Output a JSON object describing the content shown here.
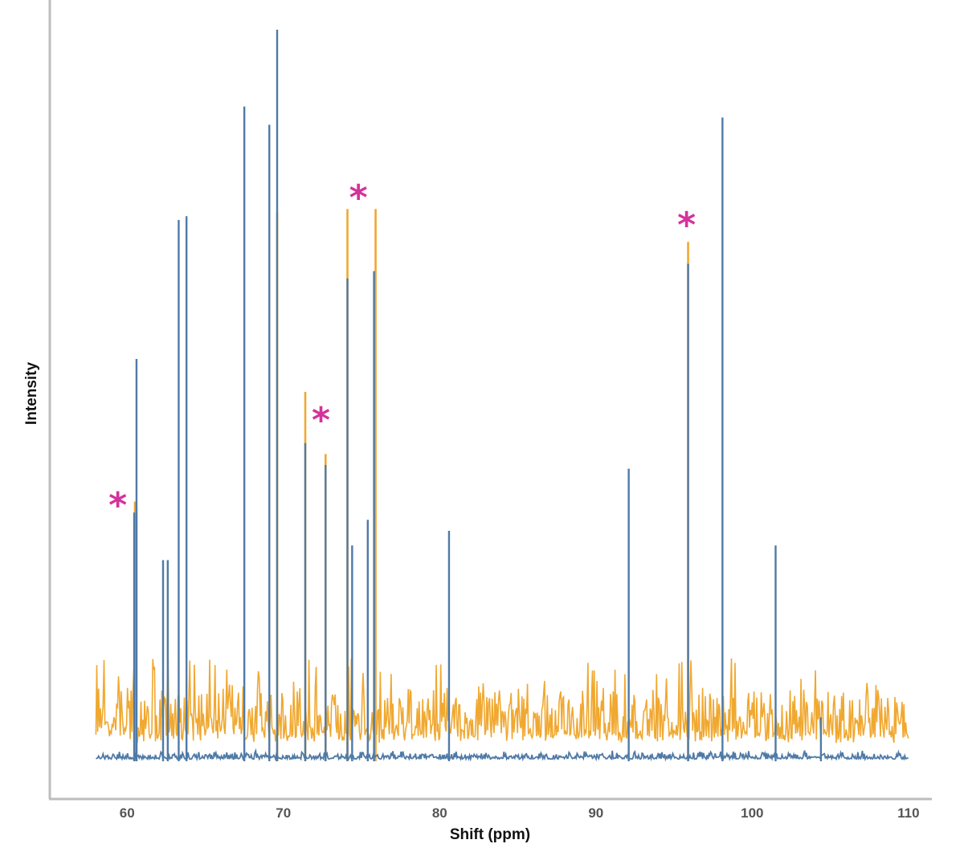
{
  "chart_data": {
    "type": "line",
    "xlabel": "Shift (ppm)",
    "ylabel": "Intensity",
    "xlim": [
      55,
      111.5
    ],
    "ylim": [
      0,
      100
    ],
    "xticks": [
      60,
      70,
      80,
      90,
      100,
      110
    ],
    "x_range_plotted": [
      58,
      110
    ],
    "colors": {
      "axis": "#bdbdbd",
      "series_orange": "#f0a830",
      "series_blue": "#4f7aa6",
      "annotation": "#d4329b"
    },
    "noise": {
      "orange_baseline": 2.5,
      "orange_amplitude": 7,
      "blue_baseline": 0.3,
      "blue_amplitude": 1.2
    },
    "series": [
      {
        "color": "orange",
        "peaks": [
          {
            "x": 60.5,
            "y": 35.5
          },
          {
            "x": 60.6,
            "y": 34.5
          },
          {
            "x": 69.6,
            "y": 75
          },
          {
            "x": 71.4,
            "y": 50.5
          },
          {
            "x": 72.7,
            "y": 42
          },
          {
            "x": 74.1,
            "y": 75.5
          },
          {
            "x": 75.9,
            "y": 75.5
          },
          {
            "x": 95.9,
            "y": 71
          }
        ]
      },
      {
        "color": "blue",
        "peaks": [
          {
            "x": 60.6,
            "y": 55
          },
          {
            "x": 60.45,
            "y": 34
          },
          {
            "x": 62.3,
            "y": 27.5
          },
          {
            "x": 62.6,
            "y": 27.5
          },
          {
            "x": 63.3,
            "y": 74
          },
          {
            "x": 63.8,
            "y": 74.5
          },
          {
            "x": 67.5,
            "y": 89.5
          },
          {
            "x": 69.1,
            "y": 87
          },
          {
            "x": 69.6,
            "y": 100
          },
          {
            "x": 71.4,
            "y": 43.5
          },
          {
            "x": 72.7,
            "y": 40.5
          },
          {
            "x": 74.1,
            "y": 66
          },
          {
            "x": 74.4,
            "y": 29.5
          },
          {
            "x": 75.4,
            "y": 33
          },
          {
            "x": 75.8,
            "y": 67
          },
          {
            "x": 80.6,
            "y": 31.5
          },
          {
            "x": 92.1,
            "y": 40
          },
          {
            "x": 95.9,
            "y": 68
          },
          {
            "x": 98.1,
            "y": 88
          },
          {
            "x": 101.5,
            "y": 29.5
          },
          {
            "x": 104.4,
            "y": 6
          }
        ]
      }
    ],
    "annotations": [
      {
        "text": "*",
        "x": 59.4,
        "y": 35.8
      },
      {
        "text": "*",
        "x": 72.4,
        "y": 47.4
      },
      {
        "text": "*",
        "x": 74.8,
        "y": 77.8
      },
      {
        "text": "*",
        "x": 95.8,
        "y": 74.1
      }
    ]
  }
}
